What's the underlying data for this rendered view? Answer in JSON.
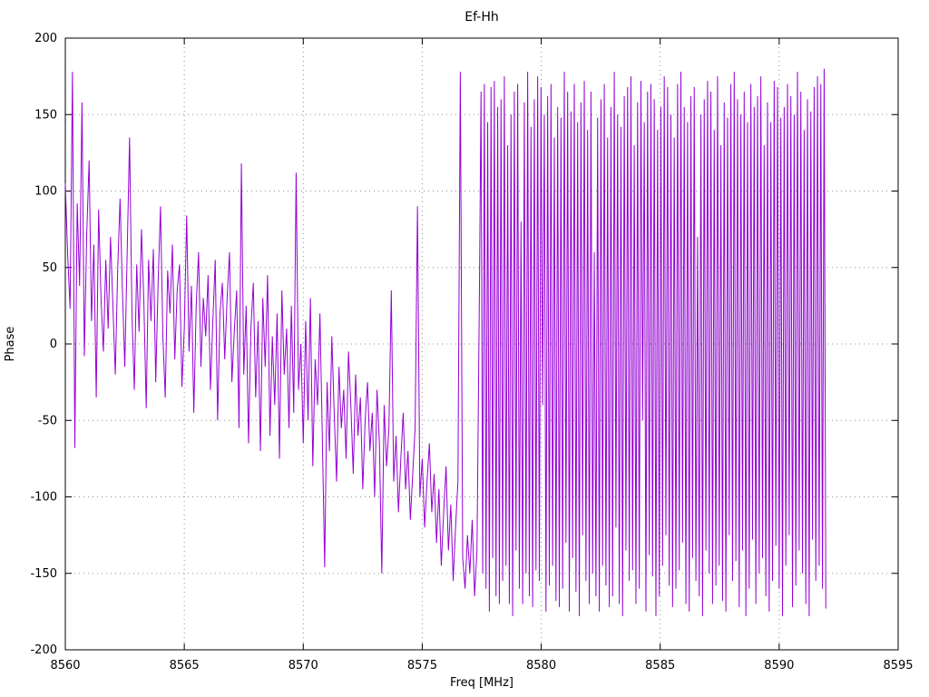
{
  "chart_data": {
    "type": "line",
    "title": "Ef-Hh",
    "xlabel": "Freq [MHz]",
    "ylabel": "Phase",
    "xlim": [
      8560,
      8595
    ],
    "ylim": [
      -200,
      200
    ],
    "xticks": [
      8560,
      8565,
      8570,
      8575,
      8580,
      8585,
      8590,
      8595
    ],
    "yticks": [
      -200,
      -150,
      -100,
      -50,
      0,
      50,
      100,
      150,
      200
    ],
    "grid": true,
    "legend": "none",
    "line_color": "#9400d3",
    "series": [
      {
        "name": "Ef-Hh phase",
        "segments": [
          {
            "x0": 8560.0,
            "dx": 0.1,
            "values": [
              105,
              58,
              23,
              178,
              -68,
              92,
              38,
              158,
              -8,
              72,
              120,
              15,
              65,
              -35,
              88,
              30,
              -5,
              55,
              10,
              70,
              25,
              -20,
              48,
              95,
              35,
              -15,
              60,
              135,
              20,
              -30,
              52,
              8,
              75,
              28,
              -42,
              55,
              15,
              62,
              -25,
              40,
              90,
              5,
              -35,
              48,
              20,
              65,
              -10,
              35,
              52,
              -28,
              10,
              84,
              -5,
              38,
              -45,
              25,
              60,
              -15,
              30,
              5,
              45,
              -30,
              15,
              55,
              -50,
              20,
              40,
              -10,
              30,
              60,
              -25,
              8,
              35,
              -55,
              118,
              -20,
              25,
              -65,
              10,
              40,
              -35,
              15,
              -70,
              30,
              -15,
              45,
              -60,
              5,
              -40,
              20,
              -75,
              35,
              -20,
              10,
              -55,
              25,
              -45,
              112,
              -30,
              0,
              -65,
              15,
              -50,
              30,
              -80,
              -10,
              -40,
              20,
              -60,
              -146,
              -25,
              -70,
              5,
              -45,
              -90,
              -15,
              -55,
              -30,
              -75,
              -5,
              -40,
              -85,
              -20,
              -60,
              -35,
              -95,
              -50,
              -25,
              -70,
              -45,
              -100,
              -30,
              -65,
              -150,
              -40,
              -80,
              -55,
              35,
              -90,
              -60,
              -110,
              -75,
              -45,
              -95,
              -70,
              -115,
              -85,
              -55,
              90,
              -100,
              -75,
              -120,
              -90,
              -65,
              -110,
              -85,
              -130,
              -95,
              -145,
              -110,
              -80,
              -135,
              -105,
              -155,
              -120,
              -90,
              178,
              -140,
              -160,
              -125,
              -150,
              -115,
              -165,
              -135
            ]
          },
          {
            "x0": 8577.4,
            "dx": 0.07,
            "values": [
              30,
              165,
              -150,
              170,
              -160,
              145,
              -175,
              168,
              -140,
              172,
              -165,
              155,
              -170,
              160,
              -155,
              175,
              -145,
              130,
              -170,
              150,
              -178,
              165,
              -135,
              170,
              -160,
              80,
              -170,
              158,
              -150,
              178,
              -165,
              142,
              -172,
              160,
              -148,
              175,
              -155,
              168,
              -40,
              150,
              -175,
              162,
              -158,
              170,
              -145,
              135,
              -168,
              155,
              -172,
              148,
              -160,
              178,
              -130,
              165,
              -175,
              152,
              -140,
              170,
              -162,
              145,
              -178,
              158,
              -125,
              172,
              -155,
              140,
              -170,
              165,
              -150,
              60,
              -165,
              148,
              -175,
              160,
              -145,
              170,
              -158,
              135,
              -172,
              155,
              -165,
              178,
              -120,
              150,
              -170,
              142,
              -178,
              162,
              -135,
              168,
              -155,
              175,
              -148,
              130,
              -170,
              158,
              -160,
              172,
              -50,
              145,
              -175,
              165,
              -138,
              170,
              -152,
              160,
              -178,
              140,
              -165,
              155,
              -145,
              175,
              -125,
              168,
              -158,
              150,
              -172,
              135,
              -160,
              170,
              -148,
              178,
              -130,
              155,
              -170,
              145,
              -175,
              162,
              -140,
              168,
              -155,
              70,
              -165,
              150,
              -178,
              160,
              -135,
              172,
              -150,
              165,
              -170,
              140,
              -158,
              175,
              -145,
              130,
              -168,
              158,
              -175,
              148,
              -125,
              170,
              -155,
              178,
              -142,
              160,
              -172,
              150,
              -135,
              165,
              -178,
              145,
              -160,
              170,
              -128,
              155,
              -170,
              162,
              -150,
              175,
              -140,
              130,
              -165,
              158,
              -175,
              145,
              -155,
              172,
              -132,
              168,
              -160,
              148,
              -178,
              155,
              -145,
              170,
              -125,
              162,
              -172,
              150,
              -158,
              178,
              -135,
              165,
              -150,
              140,
              -170,
              160,
              -178,
              152,
              -128,
              168,
              -155,
              175,
              -145,
              170,
              -160,
              180,
              -173
            ]
          }
        ]
      }
    ]
  }
}
